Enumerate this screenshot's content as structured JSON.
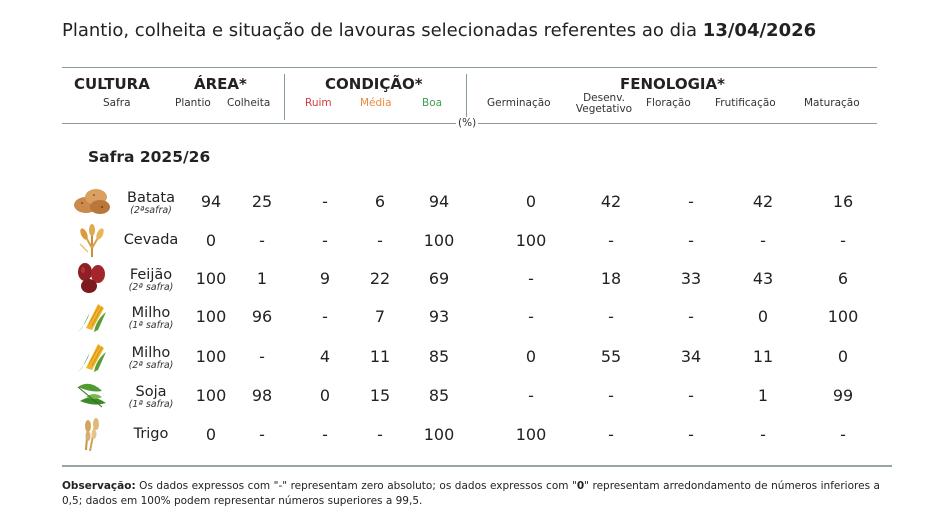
{
  "title": {
    "text": "Plantio, colheita e situação de lavouras selecionadas referentes ao dia ",
    "date": "13/04/2026"
  },
  "headers": {
    "cultura": "CULTURA",
    "safra": "Safra",
    "area": "ÁREA*",
    "plantio": "Plantio",
    "colheita": "Colheita",
    "condicao": "CONDIÇÃO*",
    "ruim": "Ruim",
    "media": "Média",
    "boa": "Boa",
    "fenologia": "FENOLOGIA*",
    "germinacao": "Germinação",
    "desenv_1": "Desenv.",
    "desenv_2": "Vegetativo",
    "floracao": "Floração",
    "frutificacao": "Frutificação",
    "maturacao": "Maturação",
    "pct": "(%)"
  },
  "safra_title": "Safra 2025/26",
  "rows": [
    {
      "crop": "Batata",
      "note": "(2ªsafra)",
      "icon": "potato-icon",
      "plantio": "94",
      "colheita": "25",
      "ruim": "-",
      "media": "6",
      "boa": "94",
      "germinacao": "0",
      "desenv": "42",
      "floracao": "-",
      "frutificacao": "42",
      "maturacao": "16"
    },
    {
      "crop": "Cevada",
      "note": "",
      "icon": "barley-icon",
      "plantio": "0",
      "colheita": "-",
      "ruim": "-",
      "media": "-",
      "boa": "100",
      "germinacao": "100",
      "desenv": "-",
      "floracao": "-",
      "frutificacao": "-",
      "maturacao": "-"
    },
    {
      "crop": "Feijão",
      "note": "(2ª safra)",
      "icon": "bean-icon",
      "plantio": "100",
      "colheita": "1",
      "ruim": "9",
      "media": "22",
      "boa": "69",
      "germinacao": "-",
      "desenv": "18",
      "floracao": "33",
      "frutificacao": "43",
      "maturacao": "6"
    },
    {
      "crop": "Milho",
      "note": "(1ª safra)",
      "icon": "corn-icon",
      "plantio": "100",
      "colheita": "96",
      "ruim": "-",
      "media": "7",
      "boa": "93",
      "germinacao": "-",
      "desenv": "-",
      "floracao": "-",
      "frutificacao": "0",
      "maturacao": "100"
    },
    {
      "crop": "Milho",
      "note": "(2ª safra)",
      "icon": "corn-icon",
      "plantio": "100",
      "colheita": "-",
      "ruim": "4",
      "media": "11",
      "boa": "85",
      "germinacao": "0",
      "desenv": "55",
      "floracao": "34",
      "frutificacao": "11",
      "maturacao": "0"
    },
    {
      "crop": "Soja",
      "note": "(1ª safra)",
      "icon": "soybean-icon",
      "plantio": "100",
      "colheita": "98",
      "ruim": "0",
      "media": "15",
      "boa": "85",
      "germinacao": "-",
      "desenv": "-",
      "floracao": "-",
      "frutificacao": "1",
      "maturacao": "99"
    },
    {
      "crop": "Trigo",
      "note": "",
      "icon": "wheat-icon",
      "plantio": "0",
      "colheita": "-",
      "ruim": "-",
      "media": "-",
      "boa": "100",
      "germinacao": "100",
      "desenv": "-",
      "floracao": "-",
      "frutificacao": "-",
      "maturacao": "-"
    }
  ],
  "observation": {
    "label": "Observação:",
    "part1": " Os dados expressos com \"-\" representam zero absoluto; os dados expressos com \"",
    "zero": "0",
    "part2": "\" representam arredondamento de números inferiores a 0,5; dados em 100% podem representar números superiores a 99,5."
  }
}
